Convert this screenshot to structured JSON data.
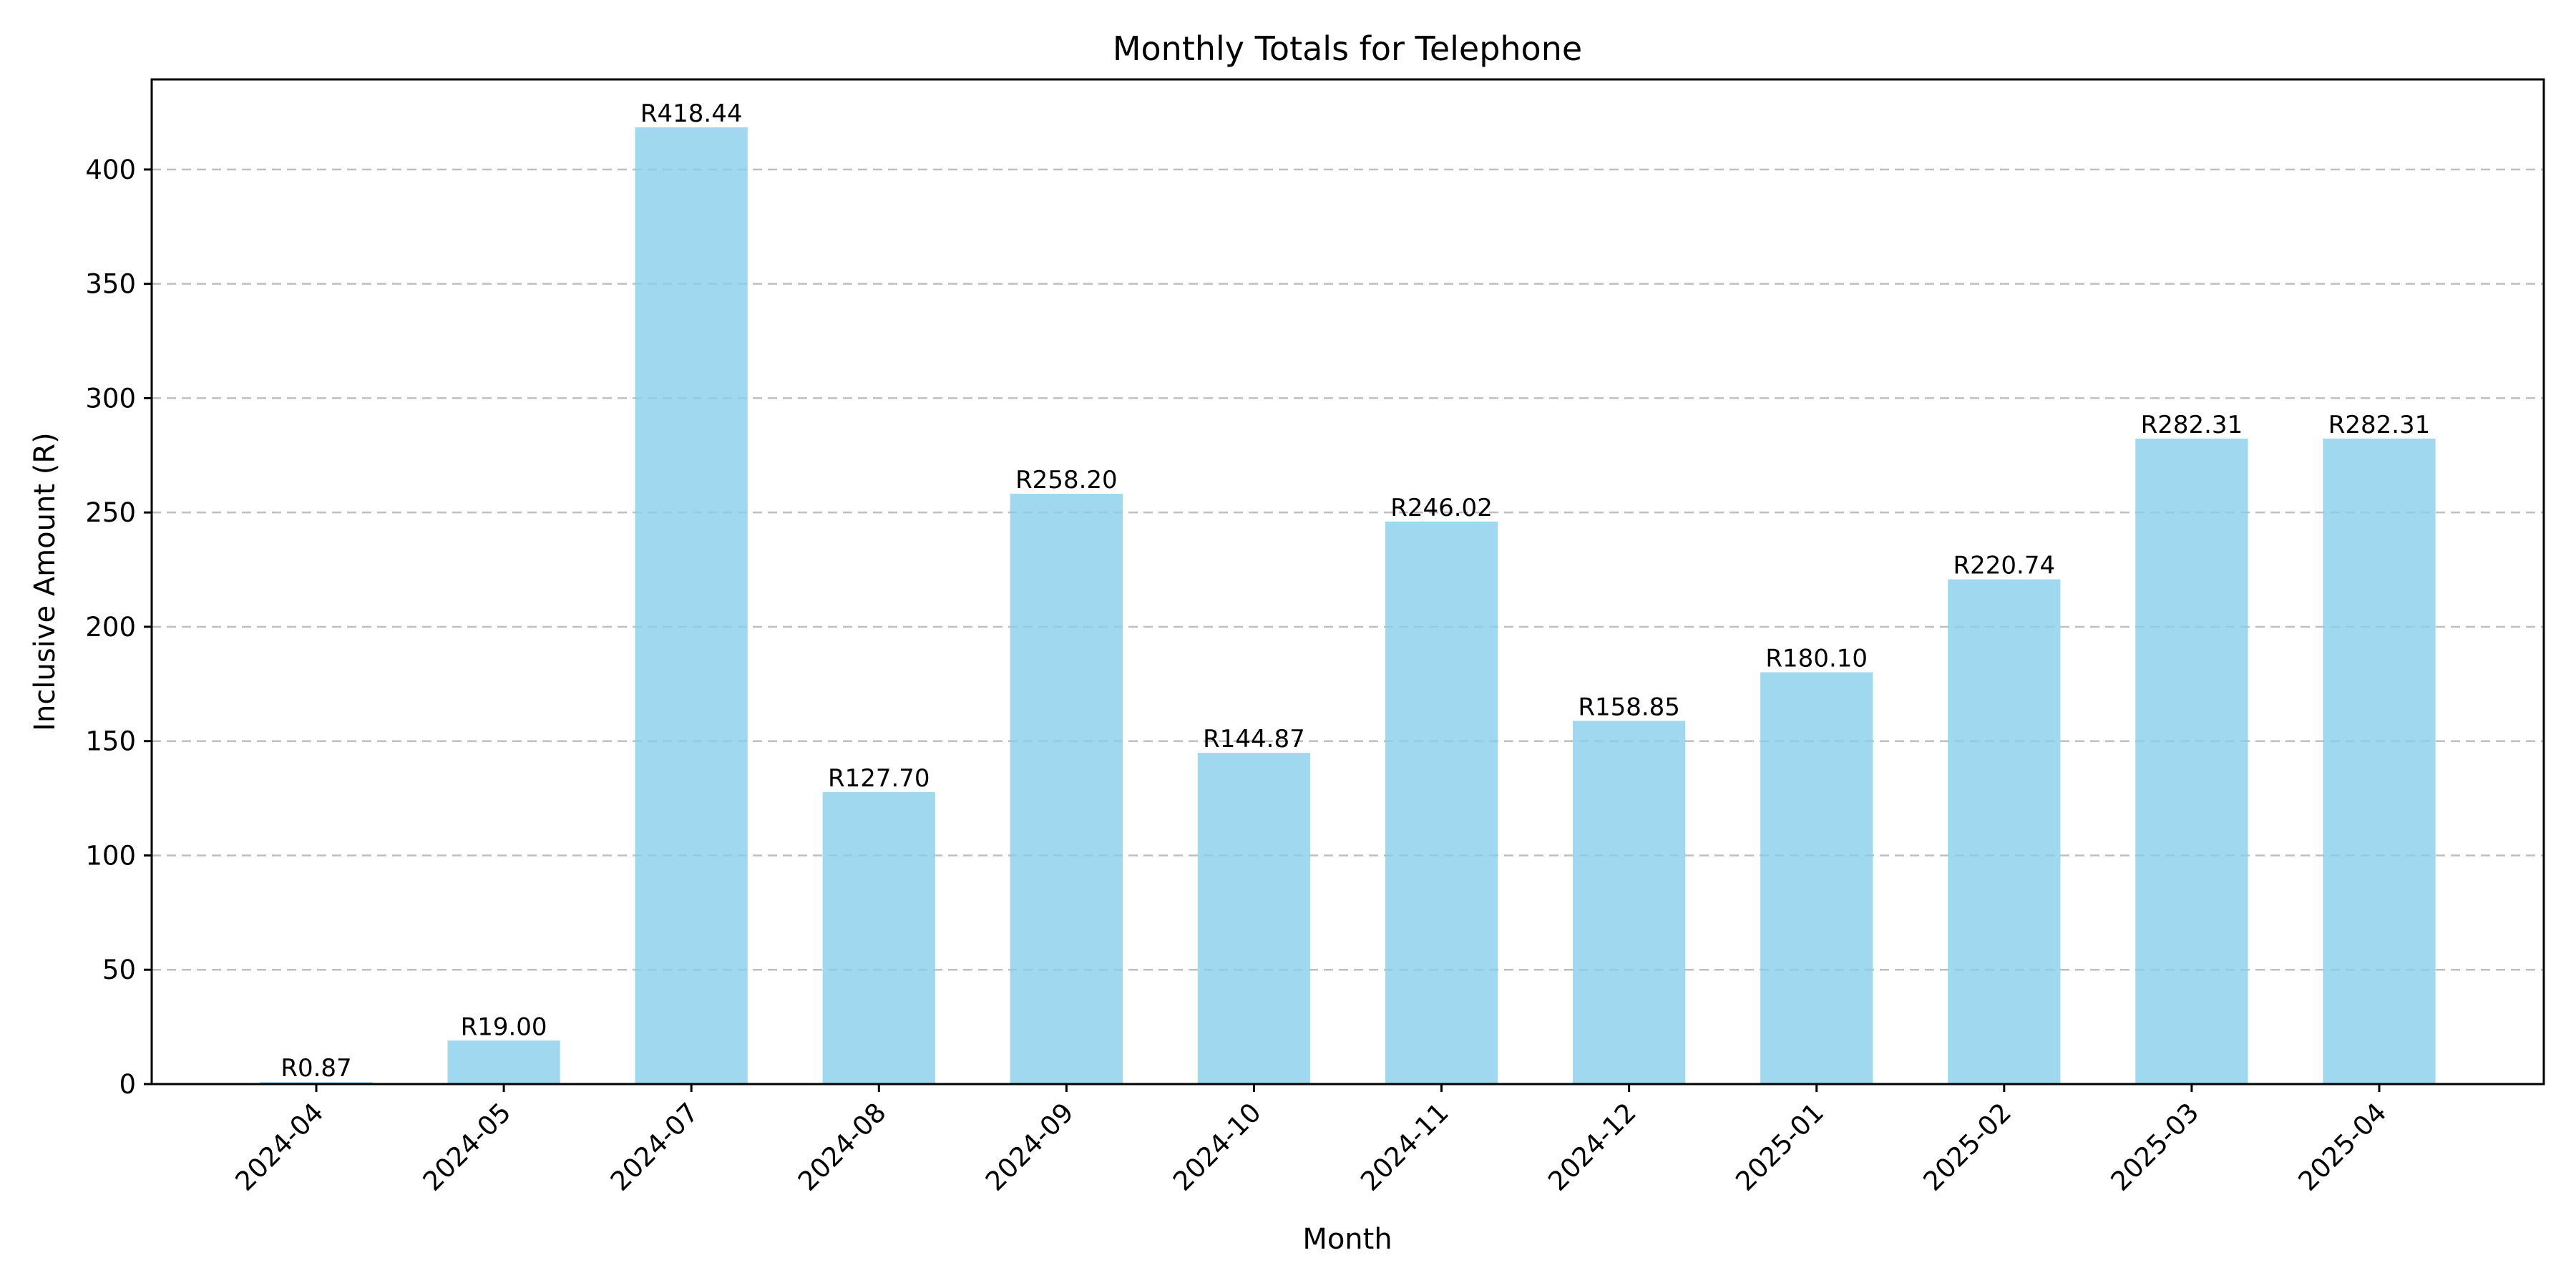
{
  "chart_data": {
    "type": "bar",
    "title": "Monthly Totals for Telephone",
    "xlabel": "Month",
    "ylabel": "Inclusive Amount (R)",
    "categories": [
      "2024-04",
      "2024-05",
      "2024-07",
      "2024-08",
      "2024-09",
      "2024-10",
      "2024-11",
      "2024-12",
      "2025-01",
      "2025-02",
      "2025-03",
      "2025-04"
    ],
    "values": [
      0.87,
      19.0,
      418.44,
      127.7,
      258.2,
      144.87,
      246.02,
      158.85,
      180.1,
      220.74,
      282.31,
      282.31
    ],
    "data_labels": [
      "R0.87",
      "R19.00",
      "R418.44",
      "R127.70",
      "R258.20",
      "R144.87",
      "R246.02",
      "R158.85",
      "R180.10",
      "R220.74",
      "R282.31",
      "R282.31"
    ],
    "yticks": [
      0,
      50,
      100,
      150,
      200,
      250,
      300,
      350,
      400
    ],
    "ylim": [
      0,
      439.4
    ],
    "grid": "y-dashed",
    "bar_color": "#87ceeb",
    "bar_opacity": 0.8
  }
}
